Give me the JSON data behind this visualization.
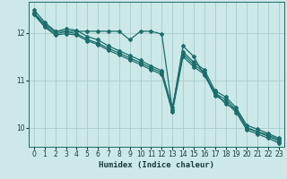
{
  "xlabel": "Humidex (Indice chaleur)",
  "bg_color": "#cce8e8",
  "grid_color": "#aacccc",
  "line_color": "#1a6e6a",
  "xlim": [
    -0.5,
    23.5
  ],
  "ylim": [
    9.6,
    12.65
  ],
  "yticks": [
    10,
    11,
    12
  ],
  "xticks": [
    0,
    1,
    2,
    3,
    4,
    5,
    6,
    7,
    8,
    9,
    10,
    11,
    12,
    13,
    14,
    15,
    16,
    17,
    18,
    19,
    20,
    21,
    22,
    23
  ],
  "line1_y": [
    12.48,
    12.22,
    12.03,
    12.03,
    12.03,
    12.03,
    12.03,
    12.03,
    12.03,
    11.85,
    12.03,
    12.03,
    11.97,
    10.38,
    11.72,
    11.5,
    11.1,
    10.75,
    10.5,
    10.38,
    10.0,
    9.92,
    9.85,
    9.75
  ],
  "line2_y": [
    12.42,
    12.18,
    12.02,
    12.08,
    12.05,
    11.92,
    11.85,
    11.72,
    11.62,
    11.52,
    11.42,
    11.3,
    11.2,
    10.42,
    11.6,
    11.38,
    11.22,
    10.78,
    10.65,
    10.42,
    10.05,
    9.97,
    9.88,
    9.78
  ],
  "line3_y": [
    12.4,
    12.15,
    11.98,
    12.02,
    11.98,
    11.86,
    11.78,
    11.67,
    11.57,
    11.47,
    11.37,
    11.26,
    11.16,
    10.37,
    11.55,
    11.33,
    11.17,
    10.72,
    10.6,
    10.37,
    9.99,
    9.91,
    9.82,
    9.72
  ],
  "line4_y": [
    12.38,
    12.12,
    11.95,
    11.98,
    11.95,
    11.83,
    11.75,
    11.63,
    11.53,
    11.43,
    11.33,
    11.22,
    11.12,
    10.33,
    11.5,
    11.28,
    11.13,
    10.68,
    10.55,
    10.32,
    9.95,
    9.87,
    9.78,
    9.68
  ]
}
